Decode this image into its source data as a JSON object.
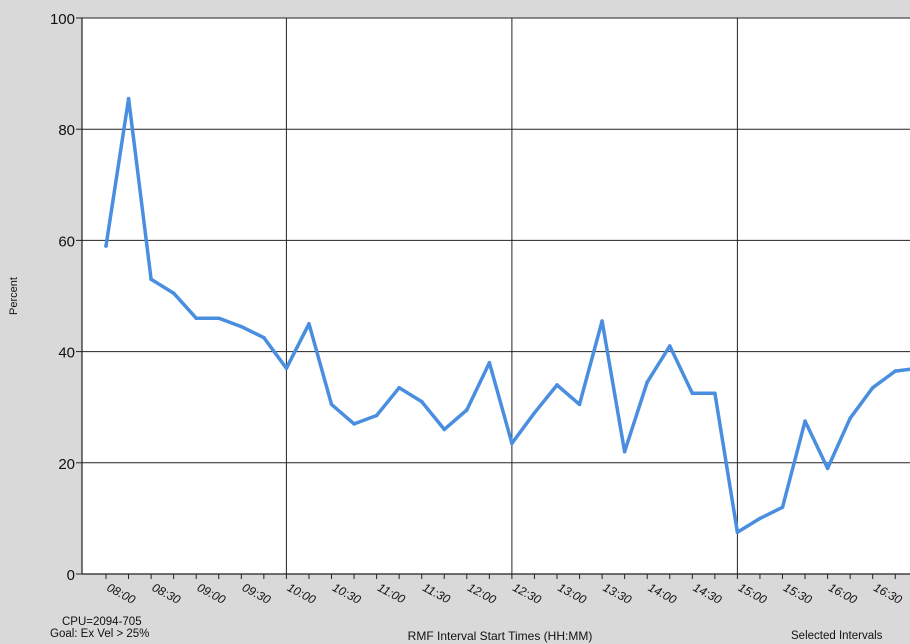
{
  "chart_data": {
    "type": "line",
    "title": "",
    "xlabel": "RMF Interval Start Times (HH:MM)",
    "ylabel": "Percent",
    "ylim": [
      0,
      100
    ],
    "yticks": [
      0,
      20,
      40,
      60,
      80,
      100
    ],
    "x_tick_labels": [
      "08:00",
      "08:30",
      "09:00",
      "09:30",
      "10:00",
      "10:30",
      "11:00",
      "11:30",
      "12:00",
      "12:30",
      "13:00",
      "13:30",
      "14:00",
      "14:30",
      "15:00",
      "15:30",
      "16:00",
      "16:30"
    ],
    "grid": true,
    "series": [
      {
        "color": "#4a8ee0",
        "x": [
          "08:00",
          "08:15",
          "08:30",
          "08:45",
          "09:00",
          "09:15",
          "09:30",
          "09:45",
          "10:00",
          "10:15",
          "10:30",
          "10:45",
          "11:00",
          "11:15",
          "11:30",
          "11:45",
          "12:00",
          "12:15",
          "12:30",
          "12:45",
          "13:00",
          "13:15",
          "13:30",
          "13:45",
          "14:00",
          "14:15",
          "14:30",
          "14:45",
          "15:00",
          "15:15",
          "15:30",
          "15:45",
          "16:00",
          "16:15",
          "16:30",
          "16:45",
          "17:00"
        ],
        "values": [
          59,
          85.5,
          53,
          50.5,
          46,
          46,
          44.5,
          42.5,
          37,
          45,
          30.5,
          27,
          28.5,
          33.5,
          31,
          26,
          29.5,
          38,
          23.5,
          29,
          34,
          30.5,
          45.5,
          22,
          34.5,
          41,
          32.5,
          32.5,
          7.5,
          10,
          12,
          27.5,
          19,
          28,
          33.5,
          36.5,
          37
        ]
      }
    ]
  },
  "footer": {
    "cpu": "CPU=2094-705",
    "goal": "Goal: Ex Vel > 25%",
    "selected": "Selected Intervals"
  }
}
